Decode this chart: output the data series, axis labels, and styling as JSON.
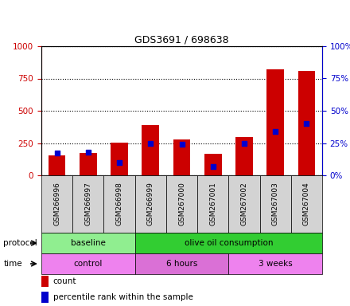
{
  "title": "GDS3691 / 698638",
  "samples": [
    "GSM266996",
    "GSM266997",
    "GSM266998",
    "GSM266999",
    "GSM267000",
    "GSM267001",
    "GSM267002",
    "GSM267003",
    "GSM267004"
  ],
  "red_counts": [
    155,
    170,
    255,
    390,
    275,
    165,
    295,
    820,
    810
  ],
  "blue_percentiles": [
    17,
    18,
    10,
    25,
    24,
    7,
    25,
    34,
    40
  ],
  "ylim_left": [
    0,
    1000
  ],
  "ylim_right": [
    0,
    100
  ],
  "yticks_left": [
    0,
    250,
    500,
    750,
    1000
  ],
  "yticks_right": [
    0,
    25,
    50,
    75,
    100
  ],
  "protocol_groups": [
    {
      "label": "baseline",
      "start": 0,
      "end": 3,
      "color": "#90ee90"
    },
    {
      "label": "olive oil consumption",
      "start": 3,
      "end": 9,
      "color": "#32cd32"
    }
  ],
  "time_groups": [
    {
      "label": "control",
      "start": 0,
      "end": 3,
      "color": "#ee82ee"
    },
    {
      "label": "6 hours",
      "start": 3,
      "end": 6,
      "color": "#da70d6"
    },
    {
      "label": "3 weeks",
      "start": 6,
      "end": 9,
      "color": "#ee82ee"
    }
  ],
  "bar_color": "#cc0000",
  "dot_color": "#0000cc",
  "bar_width": 0.55,
  "grid_color": "black",
  "grid_linestyle": ":",
  "background_color": "white",
  "tick_label_color_left": "#cc0000",
  "tick_label_color_right": "#0000cc",
  "legend_items": [
    {
      "label": "count",
      "color": "#cc0000"
    },
    {
      "label": "percentile rank within the sample",
      "color": "#0000cc"
    }
  ],
  "protocol_label": "protocol",
  "time_label": "time",
  "sample_box_color": "#d3d3d3"
}
